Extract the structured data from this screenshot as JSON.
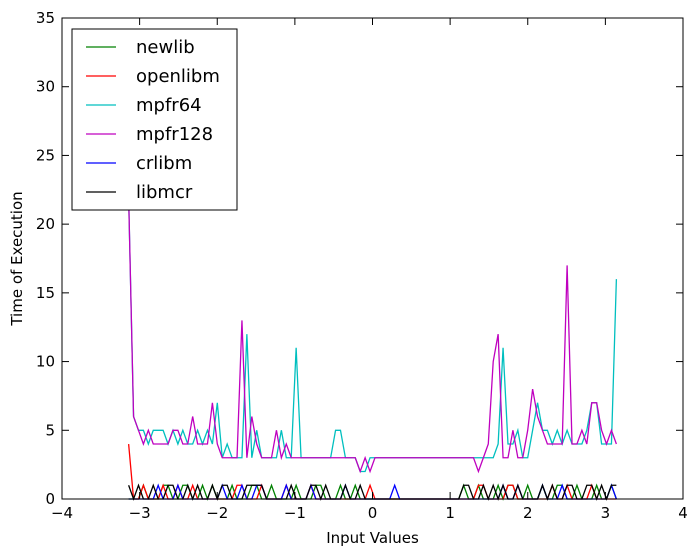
{
  "chart_data": {
    "type": "line",
    "xlabel": "Input Values",
    "ylabel": "Time of Execution",
    "xlim": [
      -4,
      4
    ],
    "ylim": [
      0,
      35
    ],
    "xticks": [
      -4,
      -3,
      -2,
      -1,
      0,
      1,
      2,
      3,
      4
    ],
    "yticks": [
      0,
      5,
      10,
      15,
      20,
      25,
      30,
      35
    ],
    "grid": false,
    "legend_position": "top-left",
    "x": [
      -3.14159,
      -3.07813,
      -3.01466,
      -2.95119,
      -2.88772,
      -2.82425,
      -2.76079,
      -2.69732,
      -2.63385,
      -2.57038,
      -2.50691,
      -2.44344,
      -2.37998,
      -2.31651,
      -2.25304,
      -2.18957,
      -2.1261,
      -2.06264,
      -1.99917,
      -1.9357,
      -1.87223,
      -1.80876,
      -1.7453,
      -1.68183,
      -1.61836,
      -1.55489,
      -1.49142,
      -1.42796,
      -1.36449,
      -1.30102,
      -1.23755,
      -1.17408,
      -1.11061,
      -1.04715,
      -0.98368,
      -0.92021,
      -0.85674,
      -0.79327,
      -0.72981,
      -0.66634,
      -0.60287,
      -0.5394,
      -0.47593,
      -0.41247,
      -0.349,
      -0.28553,
      -0.22206,
      -0.15859,
      -0.09513,
      -0.03166,
      0.03181,
      0.09528,
      0.15875,
      0.22222,
      0.28568,
      0.34915,
      0.41262,
      0.47609,
      0.53956,
      0.60302,
      0.66649,
      0.72996,
      0.79343,
      0.8569,
      0.92037,
      0.98383,
      1.0473,
      1.11077,
      1.17424,
      1.23771,
      1.30117,
      1.36464,
      1.42811,
      1.49158,
      1.55505,
      1.61851,
      1.68198,
      1.74545,
      1.80892,
      1.87239,
      1.93585,
      1.99932,
      2.06279,
      2.12626,
      2.18973,
      2.2532,
      2.31666,
      2.38013,
      2.4436,
      2.50707,
      2.57054,
      2.634,
      2.69747,
      2.76094,
      2.82441,
      2.88788,
      2.95134,
      3.01481,
      3.07828,
      3.14175
    ],
    "series": [
      {
        "name": "newlib",
        "color": "#008000",
        "values": [
          0,
          0,
          0,
          1,
          0,
          0,
          0,
          1,
          1,
          0,
          0,
          1,
          1,
          0,
          0,
          1,
          0,
          1,
          0,
          0,
          0,
          1,
          0,
          0,
          0,
          1,
          1,
          0,
          0,
          1,
          0,
          0,
          0,
          0,
          1,
          0,
          0,
          0,
          1,
          1,
          0,
          0,
          0,
          1,
          0,
          0,
          1,
          0,
          0,
          0,
          0,
          0,
          0,
          0,
          0,
          0,
          0,
          0,
          0,
          0,
          0,
          0,
          0,
          0,
          0,
          0,
          0,
          0,
          1,
          0,
          0,
          1,
          0,
          0,
          0,
          1,
          0,
          1,
          1,
          0,
          0,
          1,
          0,
          0,
          1,
          0,
          0,
          1,
          1,
          0,
          0,
          1,
          0,
          0,
          0,
          1,
          0,
          0,
          1,
          0
        ]
      },
      {
        "name": "openlibm",
        "color": "#ff0000",
        "values": [
          4,
          0,
          0,
          1,
          0,
          0,
          0,
          1,
          0,
          0,
          1,
          0,
          0,
          1,
          0,
          0,
          0,
          0,
          0,
          0,
          0,
          0,
          1,
          1,
          0,
          0,
          0,
          1,
          0,
          0,
          0,
          0,
          1,
          0,
          0,
          0,
          0,
          1,
          0,
          0,
          0,
          0,
          0,
          0,
          0,
          0,
          0,
          0,
          0,
          1,
          0,
          0,
          0,
          0,
          0,
          0,
          0,
          0,
          0,
          0,
          0,
          0,
          0,
          0,
          0,
          0,
          0,
          0,
          0,
          0,
          0,
          1,
          1,
          0,
          0,
          0,
          0,
          1,
          1,
          0,
          0,
          0,
          0,
          0,
          0,
          0,
          1,
          0,
          0,
          1,
          0,
          0,
          0,
          0,
          1,
          0,
          0,
          0,
          0,
          0
        ]
      },
      {
        "name": "mpfr64",
        "color": "#00bfbf",
        "values": [
          22,
          6,
          5,
          5,
          4,
          5,
          5,
          5,
          4,
          5,
          4,
          5,
          4,
          4,
          5,
          4,
          5,
          4,
          7,
          3,
          4,
          3,
          3,
          3,
          12,
          3,
          5,
          3,
          3,
          3,
          3,
          5,
          3,
          3,
          11,
          3,
          3,
          3,
          3,
          3,
          3,
          3,
          5,
          5,
          3,
          3,
          3,
          2,
          2,
          3,
          3,
          3,
          3,
          3,
          3,
          3,
          3,
          3,
          3,
          3,
          3,
          3,
          3,
          3,
          3,
          3,
          3,
          3,
          3,
          3,
          3,
          3,
          3,
          3,
          3,
          4,
          11,
          4,
          4,
          5,
          3,
          3,
          5,
          7,
          5,
          5,
          4,
          5,
          4,
          5,
          4,
          4,
          4,
          5,
          7,
          7,
          4,
          4,
          4,
          16
        ]
      },
      {
        "name": "mpfr128",
        "color": "#bf00bf",
        "values": [
          22,
          6,
          5,
          4,
          5,
          4,
          4,
          4,
          4,
          5,
          5,
          4,
          4,
          6,
          4,
          4,
          4,
          7,
          4,
          3,
          3,
          3,
          3,
          13,
          3,
          6,
          4,
          3,
          3,
          3,
          5,
          3,
          4,
          3,
          3,
          3,
          3,
          3,
          3,
          3,
          3,
          3,
          3,
          3,
          3,
          3,
          3,
          2,
          3,
          2,
          3,
          3,
          3,
          3,
          3,
          3,
          3,
          3,
          3,
          3,
          3,
          3,
          3,
          3,
          3,
          3,
          3,
          3,
          3,
          3,
          3,
          2,
          3,
          4,
          10,
          12,
          3,
          3,
          5,
          3,
          3,
          5,
          8,
          6,
          5,
          4,
          4,
          4,
          4,
          17,
          4,
          4,
          5,
          4,
          7,
          7,
          5,
          4,
          5,
          4
        ]
      },
      {
        "name": "crlibm",
        "color": "#0000ff",
        "values": [
          0,
          0,
          0,
          0,
          0,
          0,
          1,
          0,
          0,
          0,
          1,
          0,
          0,
          0,
          0,
          0,
          0,
          0,
          0,
          1,
          0,
          0,
          0,
          1,
          0,
          0,
          1,
          1,
          0,
          0,
          0,
          0,
          1,
          0,
          0,
          0,
          0,
          1,
          0,
          0,
          0,
          0,
          0,
          0,
          1,
          0,
          0,
          0,
          0,
          0,
          0,
          0,
          0,
          0,
          1,
          0,
          0,
          0,
          0,
          0,
          0,
          0,
          0,
          0,
          0,
          0,
          0,
          0,
          0,
          0,
          0,
          0,
          0,
          0,
          0,
          0,
          1,
          0,
          0,
          1,
          0,
          0,
          0,
          0,
          1,
          0,
          0,
          0,
          1,
          0,
          0,
          0,
          0,
          0,
          0,
          0,
          0,
          0,
          1,
          0
        ]
      },
      {
        "name": "libmcr",
        "color": "#000000",
        "values": [
          1,
          0,
          1,
          0,
          0,
          1,
          0,
          0,
          1,
          1,
          0,
          0,
          1,
          0,
          1,
          0,
          0,
          1,
          0,
          1,
          1,
          0,
          0,
          0,
          1,
          1,
          1,
          1,
          0,
          0,
          0,
          0,
          0,
          1,
          0,
          0,
          0,
          1,
          1,
          0,
          1,
          0,
          0,
          0,
          1,
          0,
          0,
          1,
          0,
          0,
          0,
          0,
          0,
          0,
          0,
          0,
          0,
          0,
          0,
          0,
          0,
          0,
          0,
          0,
          0,
          0,
          0,
          0,
          1,
          1,
          0,
          0,
          1,
          0,
          1,
          0,
          1,
          0,
          0,
          1,
          0,
          0,
          0,
          0,
          1,
          0,
          1,
          0,
          0,
          1,
          1,
          0,
          0,
          1,
          1,
          0,
          1,
          0,
          1,
          1
        ]
      }
    ]
  }
}
